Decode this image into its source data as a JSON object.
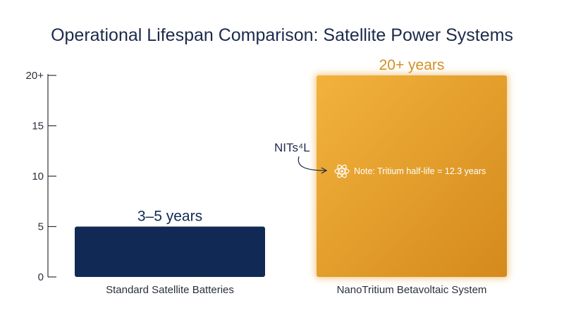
{
  "chart_data": {
    "type": "bar",
    "title": "Operational Lifespan Comparison: Satellite Power Systems",
    "categories": [
      "Standard Satellite Batteries",
      "NanoTritium Betavoltaic System"
    ],
    "values": [
      5,
      20
    ],
    "value_labels": [
      "3–5 years",
      "20+ years"
    ],
    "xlabel": "",
    "ylabel": "",
    "ylim": [
      0,
      20
    ],
    "yticks": [
      0,
      5,
      10,
      15,
      20
    ],
    "ytick_labels": [
      "0",
      "5",
      "10",
      "15",
      "20+"
    ],
    "grid": false,
    "legend": "none",
    "annotations": [
      {
        "text": "Note: Tritium half-life = 12.3 years",
        "icon": "atom-icon"
      },
      {
        "text": "NITs⁴L"
      }
    ],
    "colors": {
      "bar_1": "#102a55",
      "bar_2": "#e9a030",
      "label_1": "#102a55",
      "label_2": "#d38f22",
      "axis": "#333333"
    }
  }
}
